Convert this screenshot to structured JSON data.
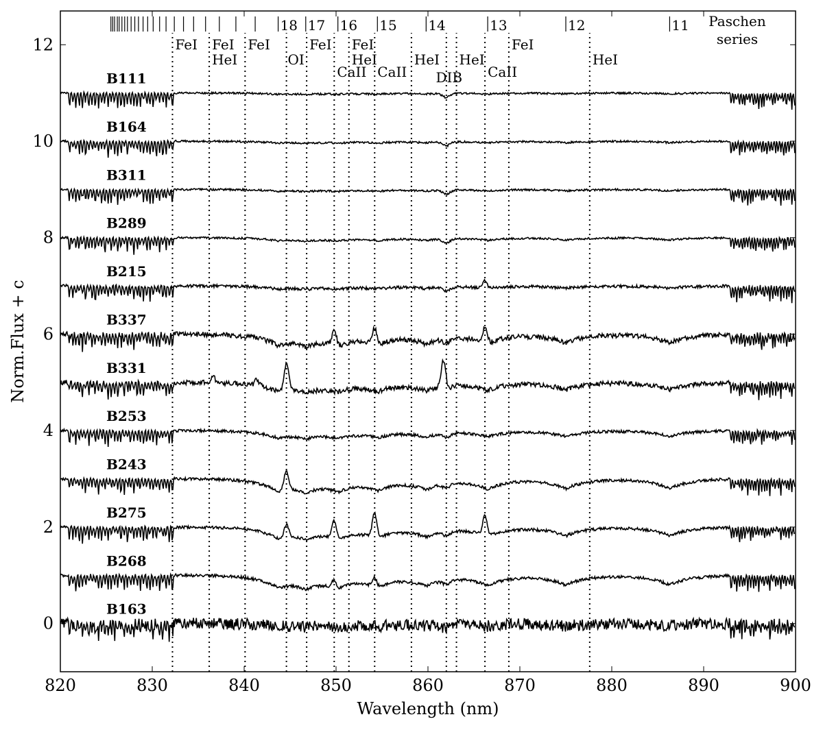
{
  "chart_data": {
    "type": "line",
    "xlabel": "Wavelength (nm)",
    "ylabel": "Norm.Flux + c",
    "xlim": [
      820,
      900
    ],
    "ylim": [
      -1,
      12.7
    ],
    "xticks": [
      "820",
      "830",
      "840",
      "850",
      "860",
      "870",
      "880",
      "890",
      "900"
    ],
    "yticks": [
      "0",
      "2",
      "4",
      "6",
      "8",
      "10",
      "12"
    ],
    "xtick_values": [
      820,
      830,
      840,
      850,
      860,
      870,
      880,
      890,
      900
    ],
    "ytick_values": [
      0,
      2,
      4,
      6,
      8,
      10,
      12
    ],
    "series": [
      {
        "name": "B111",
        "offset": 11,
        "noise": 0.02,
        "emission": [],
        "wings": 0.02
      },
      {
        "name": "B164",
        "offset": 10,
        "noise": 0.02,
        "emission": [],
        "wings": 0.03
      },
      {
        "name": "B311",
        "offset": 9,
        "noise": 0.02,
        "emission": [],
        "wings": 0.03
      },
      {
        "name": "B289",
        "offset": 8,
        "noise": 0.02,
        "emission": [],
        "wings": 0.05
      },
      {
        "name": "B215",
        "offset": 7,
        "noise": 0.03,
        "emission": [
          [
            866.2,
            0.15
          ]
        ],
        "wings": 0.05
      },
      {
        "name": "B337",
        "offset": 6,
        "noise": 0.05,
        "emission": [
          [
            849.8,
            0.3
          ],
          [
            854.2,
            0.35
          ],
          [
            866.2,
            0.3
          ]
        ],
        "wings": 0.18
      },
      {
        "name": "B331",
        "offset": 5,
        "noise": 0.05,
        "emission": [
          [
            844.6,
            0.55
          ],
          [
            861.7,
            0.6
          ],
          [
            836.6,
            0.12
          ],
          [
            841.4,
            0.12
          ]
        ],
        "wings": 0.15
      },
      {
        "name": "B253",
        "offset": 4,
        "noise": 0.03,
        "emission": [],
        "wings": 0.12
      },
      {
        "name": "B243",
        "offset": 3,
        "noise": 0.03,
        "emission": [
          [
            844.6,
            0.4
          ]
        ],
        "wings": 0.2
      },
      {
        "name": "B275",
        "offset": 2,
        "noise": 0.03,
        "emission": [
          [
            844.6,
            0.25
          ],
          [
            849.8,
            0.35
          ],
          [
            854.2,
            0.5
          ],
          [
            866.2,
            0.4
          ]
        ],
        "wings": 0.18
      },
      {
        "name": "B268",
        "offset": 1,
        "noise": 0.03,
        "emission": [
          [
            849.8,
            0.15
          ],
          [
            854.2,
            0.18
          ]
        ],
        "wings": 0.2
      },
      {
        "name": "B163",
        "offset": 0,
        "noise": 0.12,
        "emission": [],
        "wings": 0.05
      }
    ],
    "line_ids": [
      {
        "wl": 832.2,
        "label": "FeI",
        "row": 0
      },
      {
        "wl": 836.2,
        "label": "FeI",
        "row": 0
      },
      {
        "wl": 836.2,
        "label": "HeI",
        "row": 1
      },
      {
        "wl": 840.1,
        "label": "FeI",
        "row": 0
      },
      {
        "wl": 844.6,
        "label": "OI",
        "row": 1
      },
      {
        "wl": 846.8,
        "label": "FeI",
        "row": 0
      },
      {
        "wl": 849.8,
        "label": "CaII",
        "row": 2
      },
      {
        "wl": 851.4,
        "label": "FeI",
        "row": 0
      },
      {
        "wl": 851.4,
        "label": "HeI",
        "row": 1
      },
      {
        "wl": 854.2,
        "label": "CaII",
        "row": 2
      },
      {
        "wl": 858.2,
        "label": "HeI",
        "row": 1
      },
      {
        "wl": 862.0,
        "label": "DIB",
        "row": 3
      },
      {
        "wl": 863.1,
        "label": "HeI",
        "row": 1
      },
      {
        "wl": 866.2,
        "label": "CaII",
        "row": 2
      },
      {
        "wl": 868.8,
        "label": "FeI",
        "row": 0
      },
      {
        "wl": 877.6,
        "label": "HeI",
        "row": 1
      }
    ],
    "paschen": {
      "title": [
        "Paschen",
        "series"
      ],
      "labeled": [
        {
          "wl": 886.3,
          "label": "11"
        },
        {
          "wl": 875.0,
          "label": "12"
        },
        {
          "wl": 866.5,
          "label": "13"
        },
        {
          "wl": 859.8,
          "label": "14"
        },
        {
          "wl": 854.5,
          "label": "15"
        },
        {
          "wl": 850.2,
          "label": "16"
        },
        {
          "wl": 846.7,
          "label": "17"
        },
        {
          "wl": 843.7,
          "label": "18"
        }
      ],
      "unlabeled": [
        841.2,
        839.1,
        837.3,
        835.8,
        834.5,
        833.4,
        832.4,
        831.5,
        830.8,
        830.1,
        829.5,
        829.0,
        828.5,
        828.1,
        827.7,
        827.3,
        827.0,
        826.7,
        826.4,
        826.2,
        825.9,
        825.7,
        825.5
      ]
    },
    "grid": false,
    "legend": "none"
  }
}
